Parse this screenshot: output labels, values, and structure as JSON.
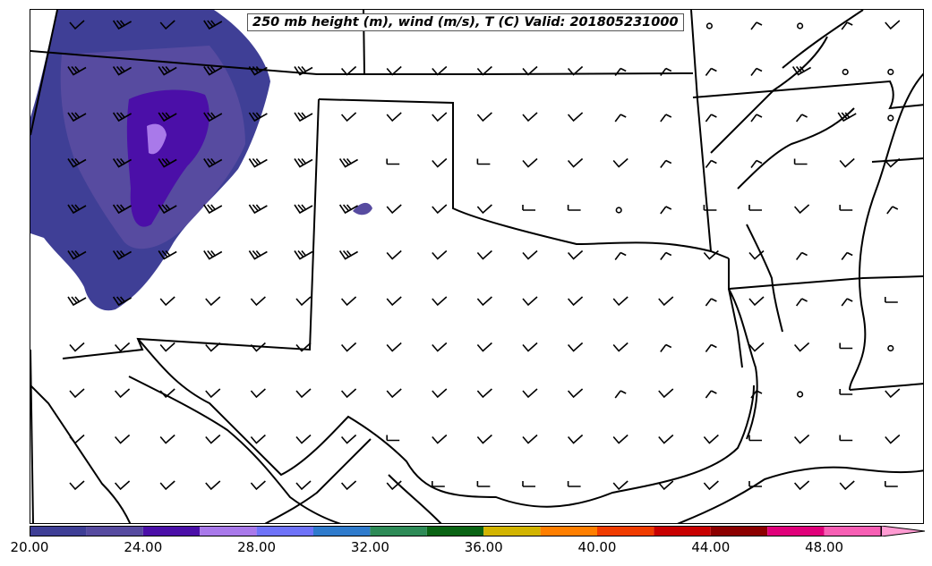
{
  "title": "250 mb height (m), wind (m/s), T (C) Valid: 201805231000",
  "colorbar": {
    "bins": [
      {
        "from": 20,
        "to": 22,
        "color": "#3f3f96"
      },
      {
        "from": 22,
        "to": 24,
        "color": "#574ba0"
      },
      {
        "from": 24,
        "to": 26,
        "color": "#4b0fa8"
      },
      {
        "from": 26,
        "to": 28,
        "color": "#a979ea"
      },
      {
        "from": 28,
        "to": 30,
        "color": "#6f73f8"
      },
      {
        "from": 30,
        "to": 32,
        "color": "#2f7bcc"
      },
      {
        "from": 32,
        "to": 34,
        "color": "#2e8b57"
      },
      {
        "from": 34,
        "to": 36,
        "color": "#0a6414"
      },
      {
        "from": 36,
        "to": 38,
        "color": "#d2b400"
      },
      {
        "from": 38,
        "to": 40,
        "color": "#ff7f00"
      },
      {
        "from": 40,
        "to": 42,
        "color": "#f03c00"
      },
      {
        "from": 42,
        "to": 44,
        "color": "#c80000"
      },
      {
        "from": 44,
        "to": 46,
        "color": "#8c0000"
      },
      {
        "from": 46,
        "to": 48,
        "color": "#e0007a"
      },
      {
        "from": 48,
        "to": 50,
        "color": "#f75fb4"
      },
      {
        "from": 50,
        "to": 51,
        "color": "#ff9bd2",
        "extend": true
      }
    ],
    "tick_labels": [
      "20.00",
      "24.00",
      "28.00",
      "32.00",
      "36.00",
      "40.00",
      "44.00",
      "48.00"
    ],
    "tick_values": [
      20,
      24,
      28,
      32,
      36,
      40,
      44,
      48
    ]
  },
  "wind_rows": [
    "lwlkkkkl---cocococl",
    "wwwkkkllllllccccwoo",
    "wwwkkkllllllcccccwoo",
    "wwwkkkk-l-lllccc-llo",
    "wwwkkkklll--oc--l-c",
    "wwwkkkklllllccllcc",
    "wwllllllllllllclcc-",
    "lllllllllllllccll-o",
    "llllllllllllclcco-l",
    "lllllll-lllllll-l-l",
    "llllllll----lll-ll-"
  ],
  "legend_units_note": ""
}
